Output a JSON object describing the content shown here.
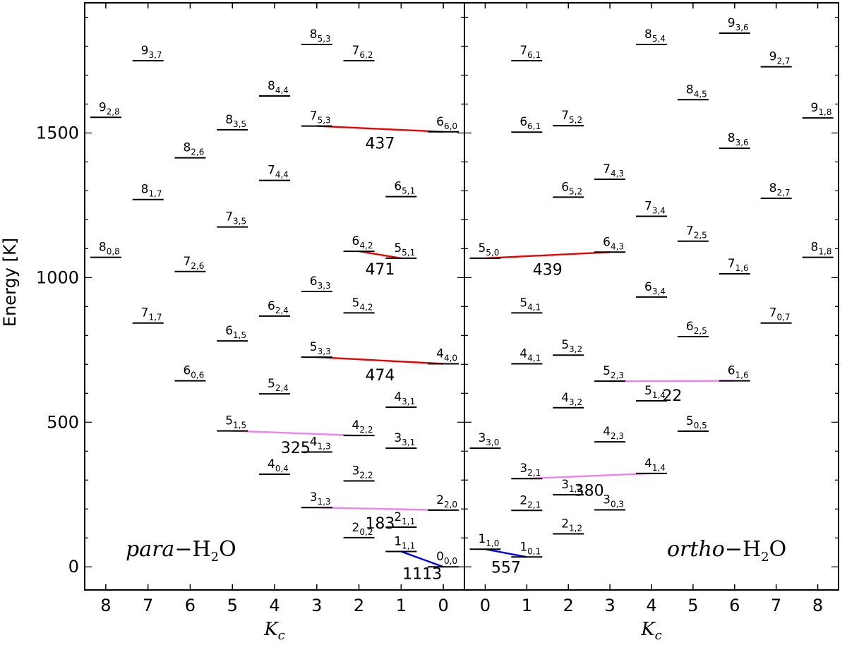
{
  "chart_data": [
    {
      "type": "energy-level-diagram",
      "title": "para−H2O",
      "title_parts": {
        "italic": "para",
        "dash": "−H",
        "sub": "2",
        "rest": "O"
      },
      "xlabel": "Kc",
      "xlabel_parts": {
        "main": "K",
        "sub": "c"
      },
      "ylabel": "Energy [K]",
      "ylim": [
        -80,
        1950
      ],
      "yticks": [
        0,
        500,
        1000,
        1500
      ],
      "xlim": [
        8.5,
        -0.5
      ],
      "xticks": [
        "8",
        "7",
        "6",
        "5",
        "4",
        "3",
        "2",
        "1",
        "0"
      ],
      "levels": [
        {
          "j": "0",
          "sub": "0,0",
          "x": 0.0,
          "e": 0
        },
        {
          "j": "1",
          "sub": "1,1",
          "x": 1.0,
          "e": 53
        },
        {
          "j": "2",
          "sub": "0,2",
          "x": 2.0,
          "e": 101
        },
        {
          "j": "2",
          "sub": "1,1",
          "x": 1.0,
          "e": 137
        },
        {
          "j": "2",
          "sub": "2,0",
          "x": 0.0,
          "e": 196
        },
        {
          "j": "3",
          "sub": "1,3",
          "x": 3.0,
          "e": 205
        },
        {
          "j": "3",
          "sub": "2,2",
          "x": 2.0,
          "e": 297
        },
        {
          "j": "4",
          "sub": "0,4",
          "x": 4.0,
          "e": 320
        },
        {
          "j": "4",
          "sub": "1,3",
          "x": 3.0,
          "e": 397
        },
        {
          "j": "3",
          "sub": "3,1",
          "x": 1.0,
          "e": 410
        },
        {
          "j": "4",
          "sub": "2,2",
          "x": 2.0,
          "e": 454
        },
        {
          "j": "5",
          "sub": "1,5",
          "x": 5.0,
          "e": 470
        },
        {
          "j": "4",
          "sub": "3,1",
          "x": 1.0,
          "e": 552
        },
        {
          "j": "5",
          "sub": "2,4",
          "x": 4.0,
          "e": 598
        },
        {
          "j": "6",
          "sub": "0,6",
          "x": 6.0,
          "e": 643
        },
        {
          "j": "4",
          "sub": "4,0",
          "x": 0.0,
          "e": 702
        },
        {
          "j": "5",
          "sub": "3,3",
          "x": 3.0,
          "e": 725
        },
        {
          "j": "6",
          "sub": "1,5",
          "x": 5.0,
          "e": 781
        },
        {
          "j": "7",
          "sub": "1,7",
          "x": 7.0,
          "e": 843
        },
        {
          "j": "6",
          "sub": "2,4",
          "x": 4.0,
          "e": 867
        },
        {
          "j": "5",
          "sub": "4,2",
          "x": 2.0,
          "e": 878
        },
        {
          "j": "6",
          "sub": "3,3",
          "x": 3.0,
          "e": 952
        },
        {
          "j": "7",
          "sub": "2,6",
          "x": 6.0,
          "e": 1021
        },
        {
          "j": "5",
          "sub": "5,1",
          "x": 1.0,
          "e": 1067
        },
        {
          "j": "8",
          "sub": "0,8",
          "x": 8.0,
          "e": 1070
        },
        {
          "j": "6",
          "sub": "4,2",
          "x": 2.0,
          "e": 1091
        },
        {
          "j": "7",
          "sub": "3,5",
          "x": 5.0,
          "e": 1175
        },
        {
          "j": "8",
          "sub": "1,7",
          "x": 7.0,
          "e": 1270
        },
        {
          "j": "6",
          "sub": "5,1",
          "x": 1.0,
          "e": 1280
        },
        {
          "j": "7",
          "sub": "4,4",
          "x": 4.0,
          "e": 1336
        },
        {
          "j": "8",
          "sub": "2,6",
          "x": 6.0,
          "e": 1414
        },
        {
          "j": "6",
          "sub": "6,0",
          "x": 0.0,
          "e": 1504
        },
        {
          "j": "8",
          "sub": "3,5",
          "x": 5.0,
          "e": 1511
        },
        {
          "j": "7",
          "sub": "5,3",
          "x": 3.0,
          "e": 1524
        },
        {
          "j": "9",
          "sub": "2,8",
          "x": 8.0,
          "e": 1554
        },
        {
          "j": "8",
          "sub": "4,4",
          "x": 4.0,
          "e": 1628
        },
        {
          "j": "9",
          "sub": "3,7",
          "x": 7.0,
          "e": 1750
        },
        {
          "j": "7",
          "sub": "6,2",
          "x": 2.0,
          "e": 1750
        },
        {
          "j": "8",
          "sub": "5,3",
          "x": 3.0,
          "e": 1806
        }
      ],
      "transitions": [
        {
          "from": [
            1.0,
            53
          ],
          "to": [
            0.0,
            0
          ],
          "label": "1113",
          "color": "#0000ee"
        },
        {
          "from": [
            3.0,
            205
          ],
          "to": [
            0.0,
            196
          ],
          "label": "183",
          "color": "#ee82ee"
        },
        {
          "from": [
            5.0,
            470
          ],
          "to": [
            2.0,
            454
          ],
          "label": "325",
          "color": "#ee82ee"
        },
        {
          "from": [
            3.0,
            725
          ],
          "to": [
            0.0,
            702
          ],
          "label": "474",
          "color": "#ee0000"
        },
        {
          "from": [
            2.0,
            1091
          ],
          "to": [
            1.0,
            1067
          ],
          "label": "471",
          "color": "#ee0000"
        },
        {
          "from": [
            3.0,
            1524
          ],
          "to": [
            0.0,
            1504
          ],
          "label": "437",
          "color": "#ee0000"
        }
      ]
    },
    {
      "type": "energy-level-diagram",
      "title": "ortho−H2O",
      "title_parts": {
        "italic": "ortho",
        "dash": "−H",
        "sub": "2",
        "rest": "O"
      },
      "xlabel": "Kc",
      "xlabel_parts": {
        "main": "K",
        "sub": "c"
      },
      "ylabel": "",
      "ylim": [
        -80,
        1950
      ],
      "xlim": [
        -0.5,
        8.5
      ],
      "xticks": [
        "0",
        "1",
        "2",
        "3",
        "4",
        "5",
        "6",
        "7",
        "8"
      ],
      "levels": [
        {
          "j": "1",
          "sub": "0,1",
          "x": 1.0,
          "e": 34
        },
        {
          "j": "1",
          "sub": "1,0",
          "x": 0.0,
          "e": 61
        },
        {
          "j": "2",
          "sub": "1,2",
          "x": 2.0,
          "e": 114
        },
        {
          "j": "2",
          "sub": "2,1",
          "x": 1.0,
          "e": 195
        },
        {
          "j": "3",
          "sub": "0,3",
          "x": 3.0,
          "e": 197
        },
        {
          "j": "3",
          "sub": "1,2",
          "x": 2.0,
          "e": 249
        },
        {
          "j": "3",
          "sub": "2,1",
          "x": 1.0,
          "e": 305
        },
        {
          "j": "4",
          "sub": "1,4",
          "x": 4.0,
          "e": 323
        },
        {
          "j": "3",
          "sub": "3,0",
          "x": 0.0,
          "e": 410
        },
        {
          "j": "4",
          "sub": "2,3",
          "x": 3.0,
          "e": 432
        },
        {
          "j": "5",
          "sub": "0,5",
          "x": 5.0,
          "e": 469
        },
        {
          "j": "4",
          "sub": "3,2",
          "x": 2.0,
          "e": 550
        },
        {
          "j": "5",
          "sub": "1,4",
          "x": 4.0,
          "e": 574
        },
        {
          "j": "5",
          "sub": "2,3",
          "x": 3.0,
          "e": 642
        },
        {
          "j": "6",
          "sub": "1,6",
          "x": 6.0,
          "e": 643
        },
        {
          "j": "4",
          "sub": "4,1",
          "x": 1.0,
          "e": 702
        },
        {
          "j": "5",
          "sub": "3,2",
          "x": 2.0,
          "e": 732
        },
        {
          "j": "6",
          "sub": "2,5",
          "x": 5.0,
          "e": 796
        },
        {
          "j": "7",
          "sub": "0,7",
          "x": 7.0,
          "e": 843
        },
        {
          "j": "5",
          "sub": "4,1",
          "x": 1.0,
          "e": 878
        },
        {
          "j": "6",
          "sub": "3,4",
          "x": 4.0,
          "e": 933
        },
        {
          "j": "7",
          "sub": "1,6",
          "x": 6.0,
          "e": 1013
        },
        {
          "j": "5",
          "sub": "5,0",
          "x": 0.0,
          "e": 1067
        },
        {
          "j": "8",
          "sub": "1,8",
          "x": 8.0,
          "e": 1070
        },
        {
          "j": "6",
          "sub": "4,3",
          "x": 3.0,
          "e": 1088
        },
        {
          "j": "7",
          "sub": "2,5",
          "x": 5.0,
          "e": 1126
        },
        {
          "j": "7",
          "sub": "3,4",
          "x": 4.0,
          "e": 1212
        },
        {
          "j": "8",
          "sub": "2,7",
          "x": 7.0,
          "e": 1274
        },
        {
          "j": "6",
          "sub": "5,2",
          "x": 2.0,
          "e": 1278
        },
        {
          "j": "7",
          "sub": "4,3",
          "x": 3.0,
          "e": 1340
        },
        {
          "j": "8",
          "sub": "3,6",
          "x": 6.0,
          "e": 1447
        },
        {
          "j": "6",
          "sub": "6,1",
          "x": 1.0,
          "e": 1503
        },
        {
          "j": "7",
          "sub": "5,2",
          "x": 2.0,
          "e": 1525
        },
        {
          "j": "9",
          "sub": "1,8",
          "x": 8.0,
          "e": 1552
        },
        {
          "j": "8",
          "sub": "4,5",
          "x": 5.0,
          "e": 1615
        },
        {
          "j": "9",
          "sub": "2,7",
          "x": 7.0,
          "e": 1729
        },
        {
          "j": "7",
          "sub": "6,1",
          "x": 1.0,
          "e": 1750
        },
        {
          "j": "8",
          "sub": "5,4",
          "x": 4.0,
          "e": 1806
        },
        {
          "j": "9",
          "sub": "3,6",
          "x": 6.0,
          "e": 1845
        }
      ],
      "transitions": [
        {
          "from": [
            0.0,
            61
          ],
          "to": [
            1.0,
            34
          ],
          "label": "557",
          "color": "#0000ee"
        },
        {
          "from": [
            1.0,
            305
          ],
          "to": [
            4.0,
            323
          ],
          "label": "380",
          "color": "#ee82ee"
        },
        {
          "from": [
            3.0,
            642
          ],
          "to": [
            6.0,
            643
          ],
          "label": "22",
          "color": "#ee82ee"
        },
        {
          "from": [
            0.0,
            1067
          ],
          "to": [
            3.0,
            1088
          ],
          "label": "439",
          "color": "#ee0000"
        }
      ]
    }
  ]
}
